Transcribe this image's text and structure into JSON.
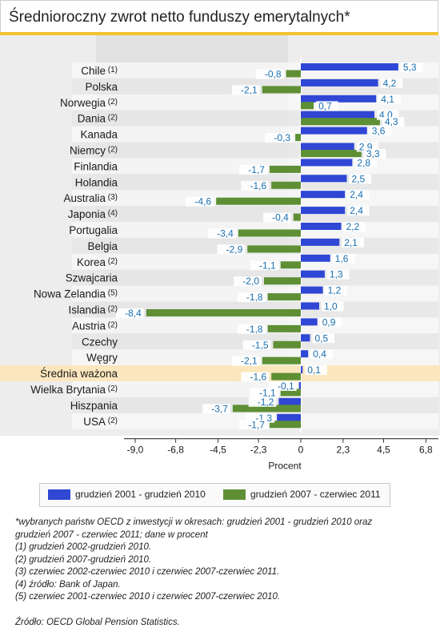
{
  "title": "Średnioroczny zwrot netto funduszy emerytalnych*",
  "chart_data": {
    "type": "bar",
    "orientation": "horizontal",
    "categories": [
      {
        "name": "Chile",
        "note": "(1)"
      },
      {
        "name": "Polska",
        "note": ""
      },
      {
        "name": "Norwegia",
        "note": "(2)"
      },
      {
        "name": "Dania",
        "note": "(2)"
      },
      {
        "name": "Kanada",
        "note": ""
      },
      {
        "name": "Niemcy",
        "note": "(2)"
      },
      {
        "name": "Finlandia",
        "note": ""
      },
      {
        "name": "Holandia",
        "note": ""
      },
      {
        "name": "Australia",
        "note": "(3)"
      },
      {
        "name": "Japonia",
        "note": "(4)"
      },
      {
        "name": "Portugalia",
        "note": ""
      },
      {
        "name": "Belgia",
        "note": ""
      },
      {
        "name": "Korea",
        "note": "(2)"
      },
      {
        "name": "Szwajcaria",
        "note": ""
      },
      {
        "name": "Nowa Zelandia",
        "note": "(5)"
      },
      {
        "name": "Islandia",
        "note": "(2)"
      },
      {
        "name": "Austria",
        "note": "(2)"
      },
      {
        "name": "Czechy",
        "note": ""
      },
      {
        "name": "Węgry",
        "note": ""
      },
      {
        "name": "Średnia ważona",
        "note": ""
      },
      {
        "name": "Wielka Brytania",
        "note": "(2)"
      },
      {
        "name": "Hiszpania",
        "note": ""
      },
      {
        "name": "USA",
        "note": "(2)"
      }
    ],
    "highlight_category": "Średnia ważona",
    "series": [
      {
        "name": "grudzień 2001 - grudzień 2010",
        "values": [
          5.3,
          4.2,
          4.1,
          4.0,
          3.6,
          2.9,
          2.8,
          2.5,
          2.4,
          2.4,
          2.2,
          2.1,
          1.6,
          1.3,
          1.2,
          1.0,
          0.9,
          0.5,
          0.4,
          0.1,
          -0.1,
          -1.2,
          -1.3
        ],
        "labels": [
          "5,3",
          "4,2",
          "4,1",
          "4,0",
          "3,6",
          "2,9",
          "2,8",
          "2,5",
          "2,4",
          "2,4",
          "2,2",
          "2,1",
          "1,6",
          "1,3",
          "1,2",
          "1,0",
          "0,9",
          "0,5",
          "0,4",
          "0,1",
          "-0,1",
          "-1,2",
          "-1,3"
        ],
        "color": "#2f47d4"
      },
      {
        "name": "grudzień 2007 - czerwiec 2011",
        "values": [
          -0.8,
          -2.1,
          0.7,
          4.3,
          -0.3,
          3.3,
          -1.7,
          -1.6,
          -4.6,
          -0.4,
          -3.4,
          -2.9,
          -1.1,
          -2.0,
          -1.8,
          -8.4,
          -1.8,
          -1.5,
          -2.1,
          -1.6,
          -1.1,
          -3.7,
          -1.7
        ],
        "labels": [
          "-0,8",
          "-2,1",
          "0,7",
          "4,3",
          "-0,3",
          "3,3",
          "-1,7",
          "-1,6",
          "-4,6",
          "-0,4",
          "-3,4",
          "-2,9",
          "-1,1",
          "-2,0",
          "-1,8",
          "-8,4",
          "-1,8",
          "-1,5",
          "-2,1",
          "-1,6",
          "-1,1",
          "-3,7",
          "-1,7"
        ],
        "color": "#5e8f35"
      }
    ],
    "x_ticks": [
      -9.0,
      -6.8,
      -4.5,
      -2.3,
      0,
      2.3,
      4.5,
      6.8
    ],
    "x_tick_labels": [
      "-9,0",
      "-6,8",
      "-4,5",
      "-2,3",
      "0",
      "2,3",
      "4,5",
      "6,8"
    ],
    "xlim": [
      -9.0,
      6.8
    ],
    "xlabel": "Procent",
    "label_color": "#1a6fb0",
    "highlight_color": "#fbe6bd"
  },
  "footnotes": [
    "*wybranych państw OECD z inwestycji w okresach: grudzień 2001 - grudzień 2010 oraz",
    "grudzień 2007 - czerwiec 2011; dane w procent",
    "(1) grudzień 2002-grudzień 2010.",
    "(2) grudzień 2007-grudzień 2010.",
    "(3) czerwiec 2002-czerwiec 2010 i czerwiec 2007-czerwiec 2011.",
    "(4) źródło: Bank of Japan.",
    "(5) czerwiec 2001-czerwiec 2010 i czerwiec 2007-czerwiec 2010."
  ],
  "source": "Źródło: OECD Global Pension Statistics."
}
